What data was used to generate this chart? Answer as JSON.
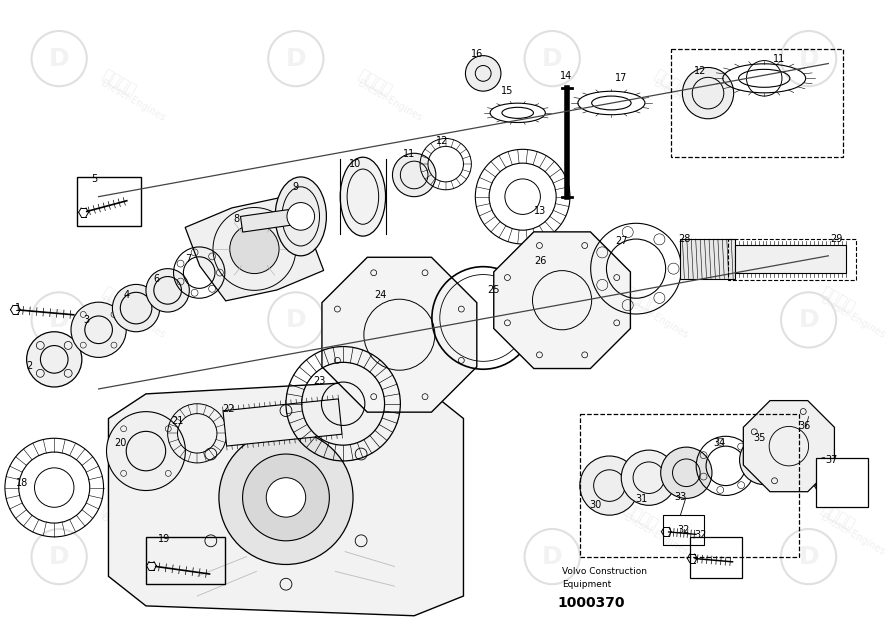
{
  "bg_color": "#ffffff",
  "line_color": "#000000",
  "watermark_color": "#e0e0e0",
  "part_number": "1000370",
  "manufacturer_line1": "Volvo Construction",
  "manufacturer_line2": "Equipment"
}
